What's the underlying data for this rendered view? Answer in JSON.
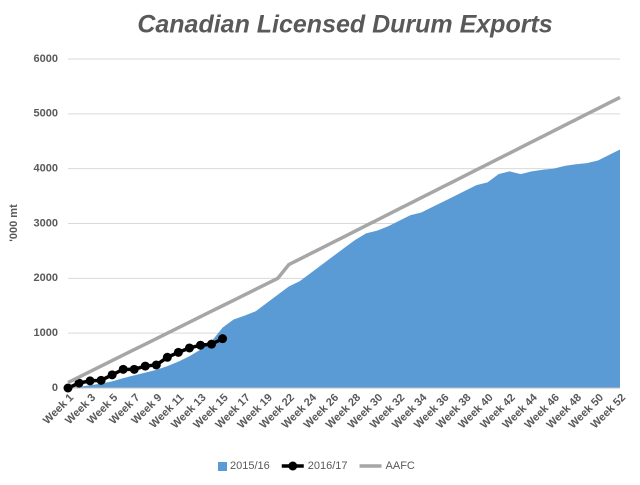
{
  "chart_data": {
    "type": "line",
    "title": "Canadian Licensed Durum Exports",
    "y_label": "'000 mt",
    "categories": [
      "Week 1",
      null,
      "Week 3",
      null,
      "Week 5",
      null,
      "Week 7",
      null,
      "Week 9",
      null,
      "Week 11",
      null,
      "Week 13",
      null,
      "Week 15",
      null,
      "Week 17",
      null,
      "Week 19",
      null,
      "Week 22",
      null,
      "Week 24",
      null,
      "Week 26",
      null,
      "Week 28",
      null,
      "Week 30",
      null,
      "Week 32",
      null,
      "Week 34",
      null,
      "Week 36",
      null,
      "Week 38",
      null,
      "Week 40",
      null,
      "Week 42",
      null,
      "Week 44",
      null,
      "Week 46",
      null,
      "Week 48",
      null,
      "Week 50",
      null,
      "Week 52"
    ],
    "series": [
      {
        "name": "2015/16",
        "kind": "area",
        "color": "#5b9bd5",
        "values": [
          0,
          20,
          50,
          80,
          120,
          180,
          230,
          280,
          330,
          400,
          480,
          580,
          700,
          850,
          1100,
          1250,
          1320,
          1400,
          1550,
          1700,
          1850,
          1950,
          2100,
          2250,
          2400,
          2550,
          2700,
          2820,
          2870,
          2950,
          3050,
          3150,
          3200,
          3300,
          3400,
          3500,
          3600,
          3700,
          3750,
          3900,
          3950,
          3900,
          3950,
          3980,
          4000,
          4050,
          4080,
          4100,
          4150,
          4250,
          4350
        ]
      },
      {
        "name": "2016/17",
        "kind": "line-marker",
        "color": "#000000",
        "values": [
          0,
          90,
          130,
          140,
          240,
          340,
          340,
          400,
          420,
          560,
          650,
          730,
          780,
          800,
          900,
          null,
          null,
          null,
          null,
          null,
          null,
          null,
          null,
          null,
          null,
          null,
          null,
          null,
          null,
          null,
          null,
          null,
          null,
          null,
          null,
          null,
          null,
          null,
          null,
          null,
          null,
          null,
          null,
          null,
          null,
          null,
          null,
          null,
          null,
          null,
          null
        ]
      },
      {
        "name": "AAFC",
        "kind": "line",
        "color": "#a6a6a6",
        "values": [
          100,
          200,
          300,
          400,
          500,
          600,
          700,
          800,
          900,
          1000,
          1100,
          1200,
          1300,
          1400,
          1500,
          1600,
          1700,
          1800,
          1900,
          2000,
          2250,
          2352,
          2453,
          2555,
          2657,
          2758,
          2860,
          2962,
          3063,
          3165,
          3267,
          3368,
          3470,
          3572,
          3673,
          3775,
          3877,
          3978,
          4080,
          4182,
          4283,
          4385,
          4487,
          4588,
          4690,
          4792,
          4893,
          4995,
          5097,
          5198,
          5300
        ]
      }
    ],
    "ylim": [
      0,
      6000
    ],
    "yticks": [
      0,
      1000,
      2000,
      3000,
      4000,
      5000,
      6000
    ],
    "grid": true,
    "legend": "bottom"
  }
}
